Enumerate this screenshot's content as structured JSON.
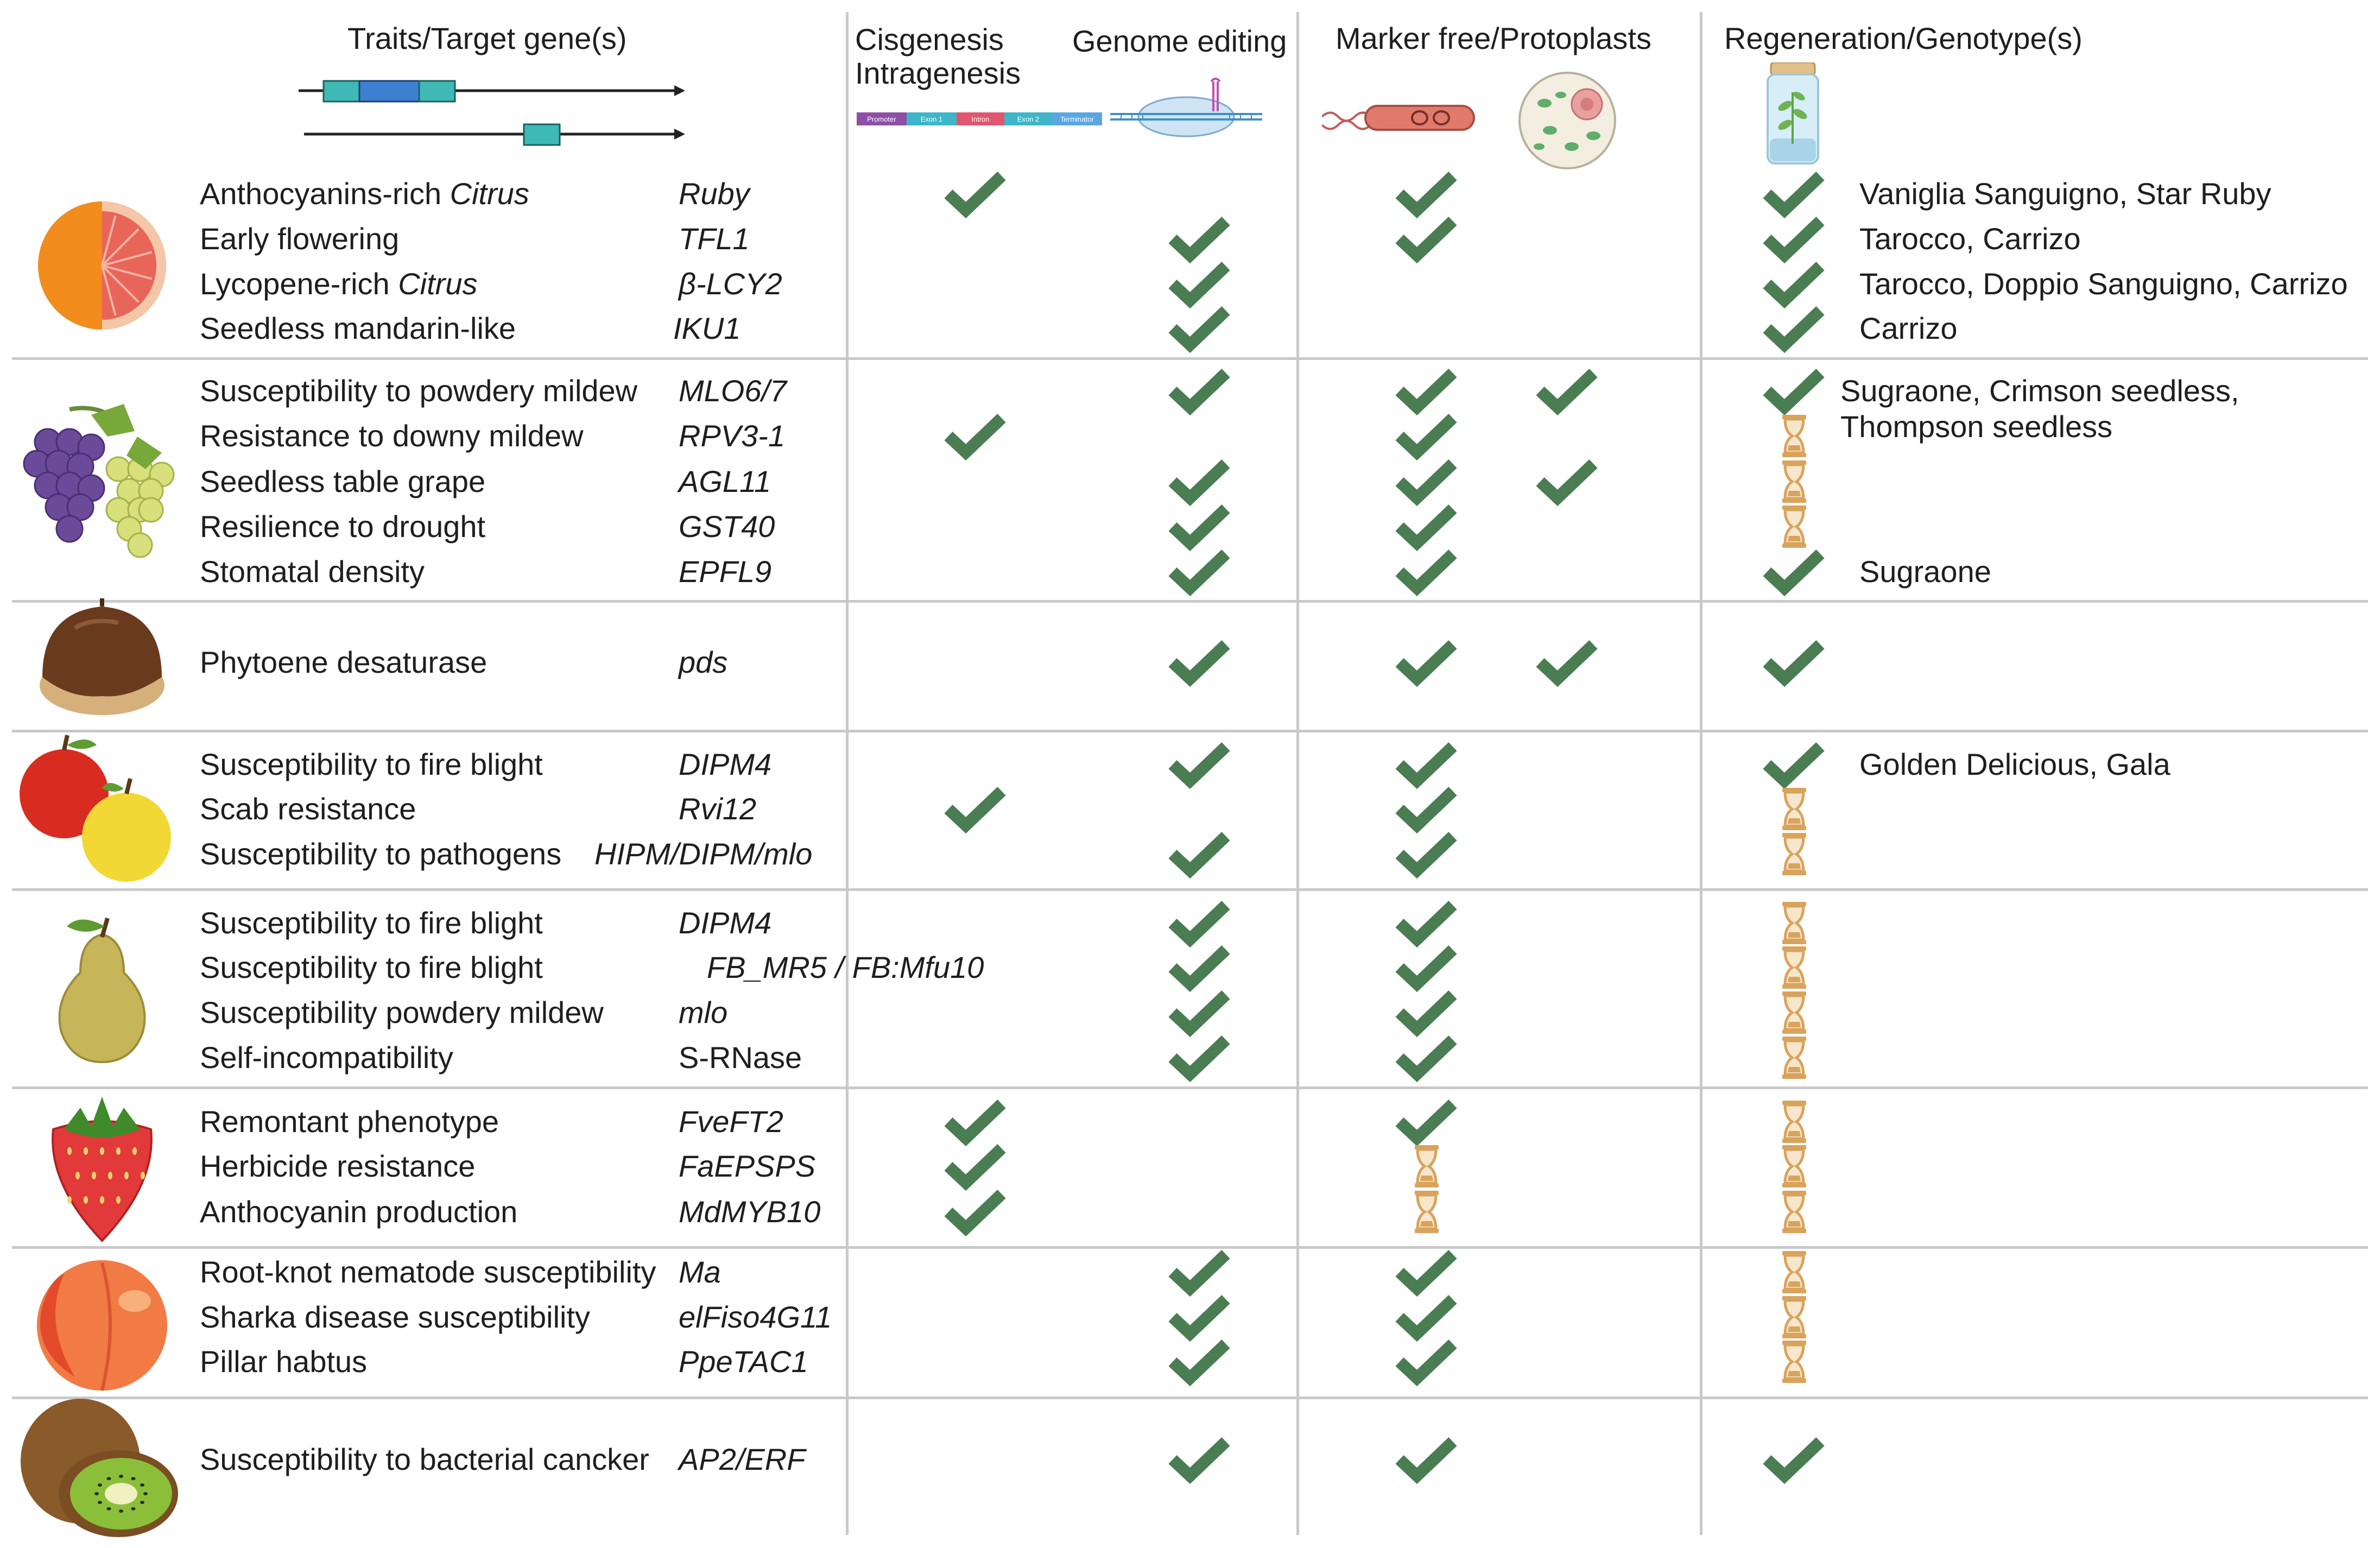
{
  "headers": {
    "traits": "Traits/Target gene(s)",
    "cis_line1": "Cisgenesis",
    "cis_line2": "Intragenesis",
    "genome_editing": "Genome editing",
    "marker_free": "Marker free/Protoplasts",
    "regeneration": "Regeneration/Genotype(s)",
    "construct_labels": [
      "Promoter",
      "Exon 1",
      "Intron",
      "Exon 2",
      "Terminator"
    ]
  },
  "colors": {
    "check": "#4a7d52",
    "hourglass": "#d9a35c",
    "divider": "#c9c9c9"
  },
  "groups": [
    {
      "fruit": "orange-icon",
      "rows": [
        {
          "trait": "Anthocyanins-rich ",
          "trait_em": "Citrus",
          "gene": "Ruby",
          "cis": true,
          "ge": false,
          "mf": true,
          "pp": false,
          "reg": "check",
          "genotype": "Vaniglia Sanguigno, Star Ruby"
        },
        {
          "trait": "Early flowering",
          "gene": "TFL1",
          "cis": false,
          "ge": true,
          "mf": true,
          "pp": false,
          "reg": "check",
          "genotype": "Tarocco, Carrizo"
        },
        {
          "trait": "Lycopene-rich ",
          "trait_em": "Citrus",
          "gene": "β-LCY2",
          "cis": false,
          "ge": true,
          "mf": false,
          "pp": false,
          "reg": "check",
          "genotype": "Tarocco, Doppio Sanguigno, Carrizo"
        },
        {
          "trait": "Seedless mandarin-like",
          "gene": "IKU1",
          "cis": false,
          "ge": true,
          "mf": false,
          "pp": false,
          "reg": "check",
          "genotype": "Carrizo"
        }
      ]
    },
    {
      "fruit": "grape-icon",
      "rows": [
        {
          "trait": "Susceptibility to powdery mildew",
          "gene": "MLO6/7",
          "cis": false,
          "ge": true,
          "mf": true,
          "pp": true,
          "reg": "check",
          "genotype": "Sugraone, Crimson seedless,\nThompson seedless"
        },
        {
          "trait": "Resistance to downy mildew",
          "gene": "RPV3-1",
          "cis": true,
          "ge": false,
          "mf": true,
          "pp": false,
          "reg": "hourglass",
          "genotype": ""
        },
        {
          "trait": "Seedless table grape",
          "gene": "AGL11",
          "cis": false,
          "ge": true,
          "mf": true,
          "pp": true,
          "reg": "hourglass",
          "genotype": ""
        },
        {
          "trait": "Resilience to drought",
          "gene": "GST40",
          "cis": false,
          "ge": true,
          "mf": true,
          "pp": false,
          "reg": "hourglass",
          "genotype": ""
        },
        {
          "trait": "Stomatal density",
          "gene": "EPFL9",
          "cis": false,
          "ge": true,
          "mf": true,
          "pp": false,
          "reg": "check",
          "genotype": "Sugraone"
        }
      ]
    },
    {
      "fruit": "chestnut-icon",
      "rows": [
        {
          "trait": "Phytoene desaturase",
          "gene": "pds",
          "cis": false,
          "ge": true,
          "mf": true,
          "pp": true,
          "reg": "check",
          "genotype": ""
        }
      ]
    },
    {
      "fruit": "apple-icon",
      "rows": [
        {
          "trait": "Susceptibility to fire blight",
          "gene": "DIPM4",
          "cis": false,
          "ge": true,
          "mf": true,
          "pp": false,
          "reg": "check",
          "genotype": "Golden Delicious, Gala"
        },
        {
          "trait": "Scab resistance",
          "gene": "Rvi12",
          "cis": true,
          "ge": false,
          "mf": true,
          "pp": false,
          "reg": "hourglass",
          "genotype": ""
        },
        {
          "trait": "Susceptibility to pathogens",
          "gene": "HIPM/DIPM/mlo",
          "cis": false,
          "ge": true,
          "mf": true,
          "pp": false,
          "reg": "hourglass",
          "genotype": ""
        }
      ]
    },
    {
      "fruit": "pear-icon",
      "rows": [
        {
          "trait": "Susceptibility to fire blight",
          "gene": "DIPM4",
          "cis": false,
          "ge": true,
          "mf": true,
          "pp": false,
          "reg": "hourglass",
          "genotype": ""
        },
        {
          "trait": "Susceptibility to fire blight",
          "gene": "FB_MR5 / FB:Mfu10",
          "cis": false,
          "ge": true,
          "mf": true,
          "pp": false,
          "reg": "hourglass",
          "genotype": ""
        },
        {
          "trait": "Susceptibility powdery mildew",
          "gene": "mlo",
          "cis": false,
          "ge": true,
          "mf": true,
          "pp": false,
          "reg": "hourglass",
          "genotype": ""
        },
        {
          "trait": "Self-incompatibility",
          "gene": "S-RNase",
          "gene_upright": true,
          "cis": false,
          "ge": true,
          "mf": true,
          "pp": false,
          "reg": "hourglass",
          "genotype": ""
        }
      ]
    },
    {
      "fruit": "strawberry-icon",
      "rows": [
        {
          "trait": "Remontant phenotype",
          "gene": "FveFT2",
          "cis": true,
          "ge": false,
          "mf": "check",
          "pp": false,
          "reg": "hourglass",
          "genotype": ""
        },
        {
          "trait": "Herbicide resistance",
          "gene": "FaEPSPS",
          "cis": true,
          "ge": false,
          "mf": "hourglass",
          "pp": false,
          "reg": "hourglass",
          "genotype": ""
        },
        {
          "trait": "Anthocyanin production",
          "gene": "MdMYB10",
          "cis": true,
          "ge": false,
          "mf": "hourglass",
          "pp": false,
          "reg": "hourglass",
          "genotype": ""
        }
      ]
    },
    {
      "fruit": "peach-icon",
      "rows": [
        {
          "trait": "Root-knot nematode susceptibility",
          "gene": "Ma",
          "cis": false,
          "ge": true,
          "mf": true,
          "pp": false,
          "reg": "hourglass",
          "genotype": ""
        },
        {
          "trait": "Sharka disease susceptibility",
          "gene": "elFiso4G11",
          "cis": false,
          "ge": true,
          "mf": true,
          "pp": false,
          "reg": "hourglass",
          "genotype": ""
        },
        {
          "trait": "Pillar habtus",
          "gene": "PpeTAC1",
          "cis": false,
          "ge": true,
          "mf": true,
          "pp": false,
          "reg": "hourglass",
          "genotype": ""
        }
      ]
    },
    {
      "fruit": "kiwi-icon",
      "rows": [
        {
          "trait": "Susceptibility to bacterial cancker",
          "gene": "AP2/ERF",
          "cis": false,
          "ge": true,
          "mf": true,
          "pp": false,
          "reg": "check",
          "genotype": ""
        }
      ]
    }
  ]
}
